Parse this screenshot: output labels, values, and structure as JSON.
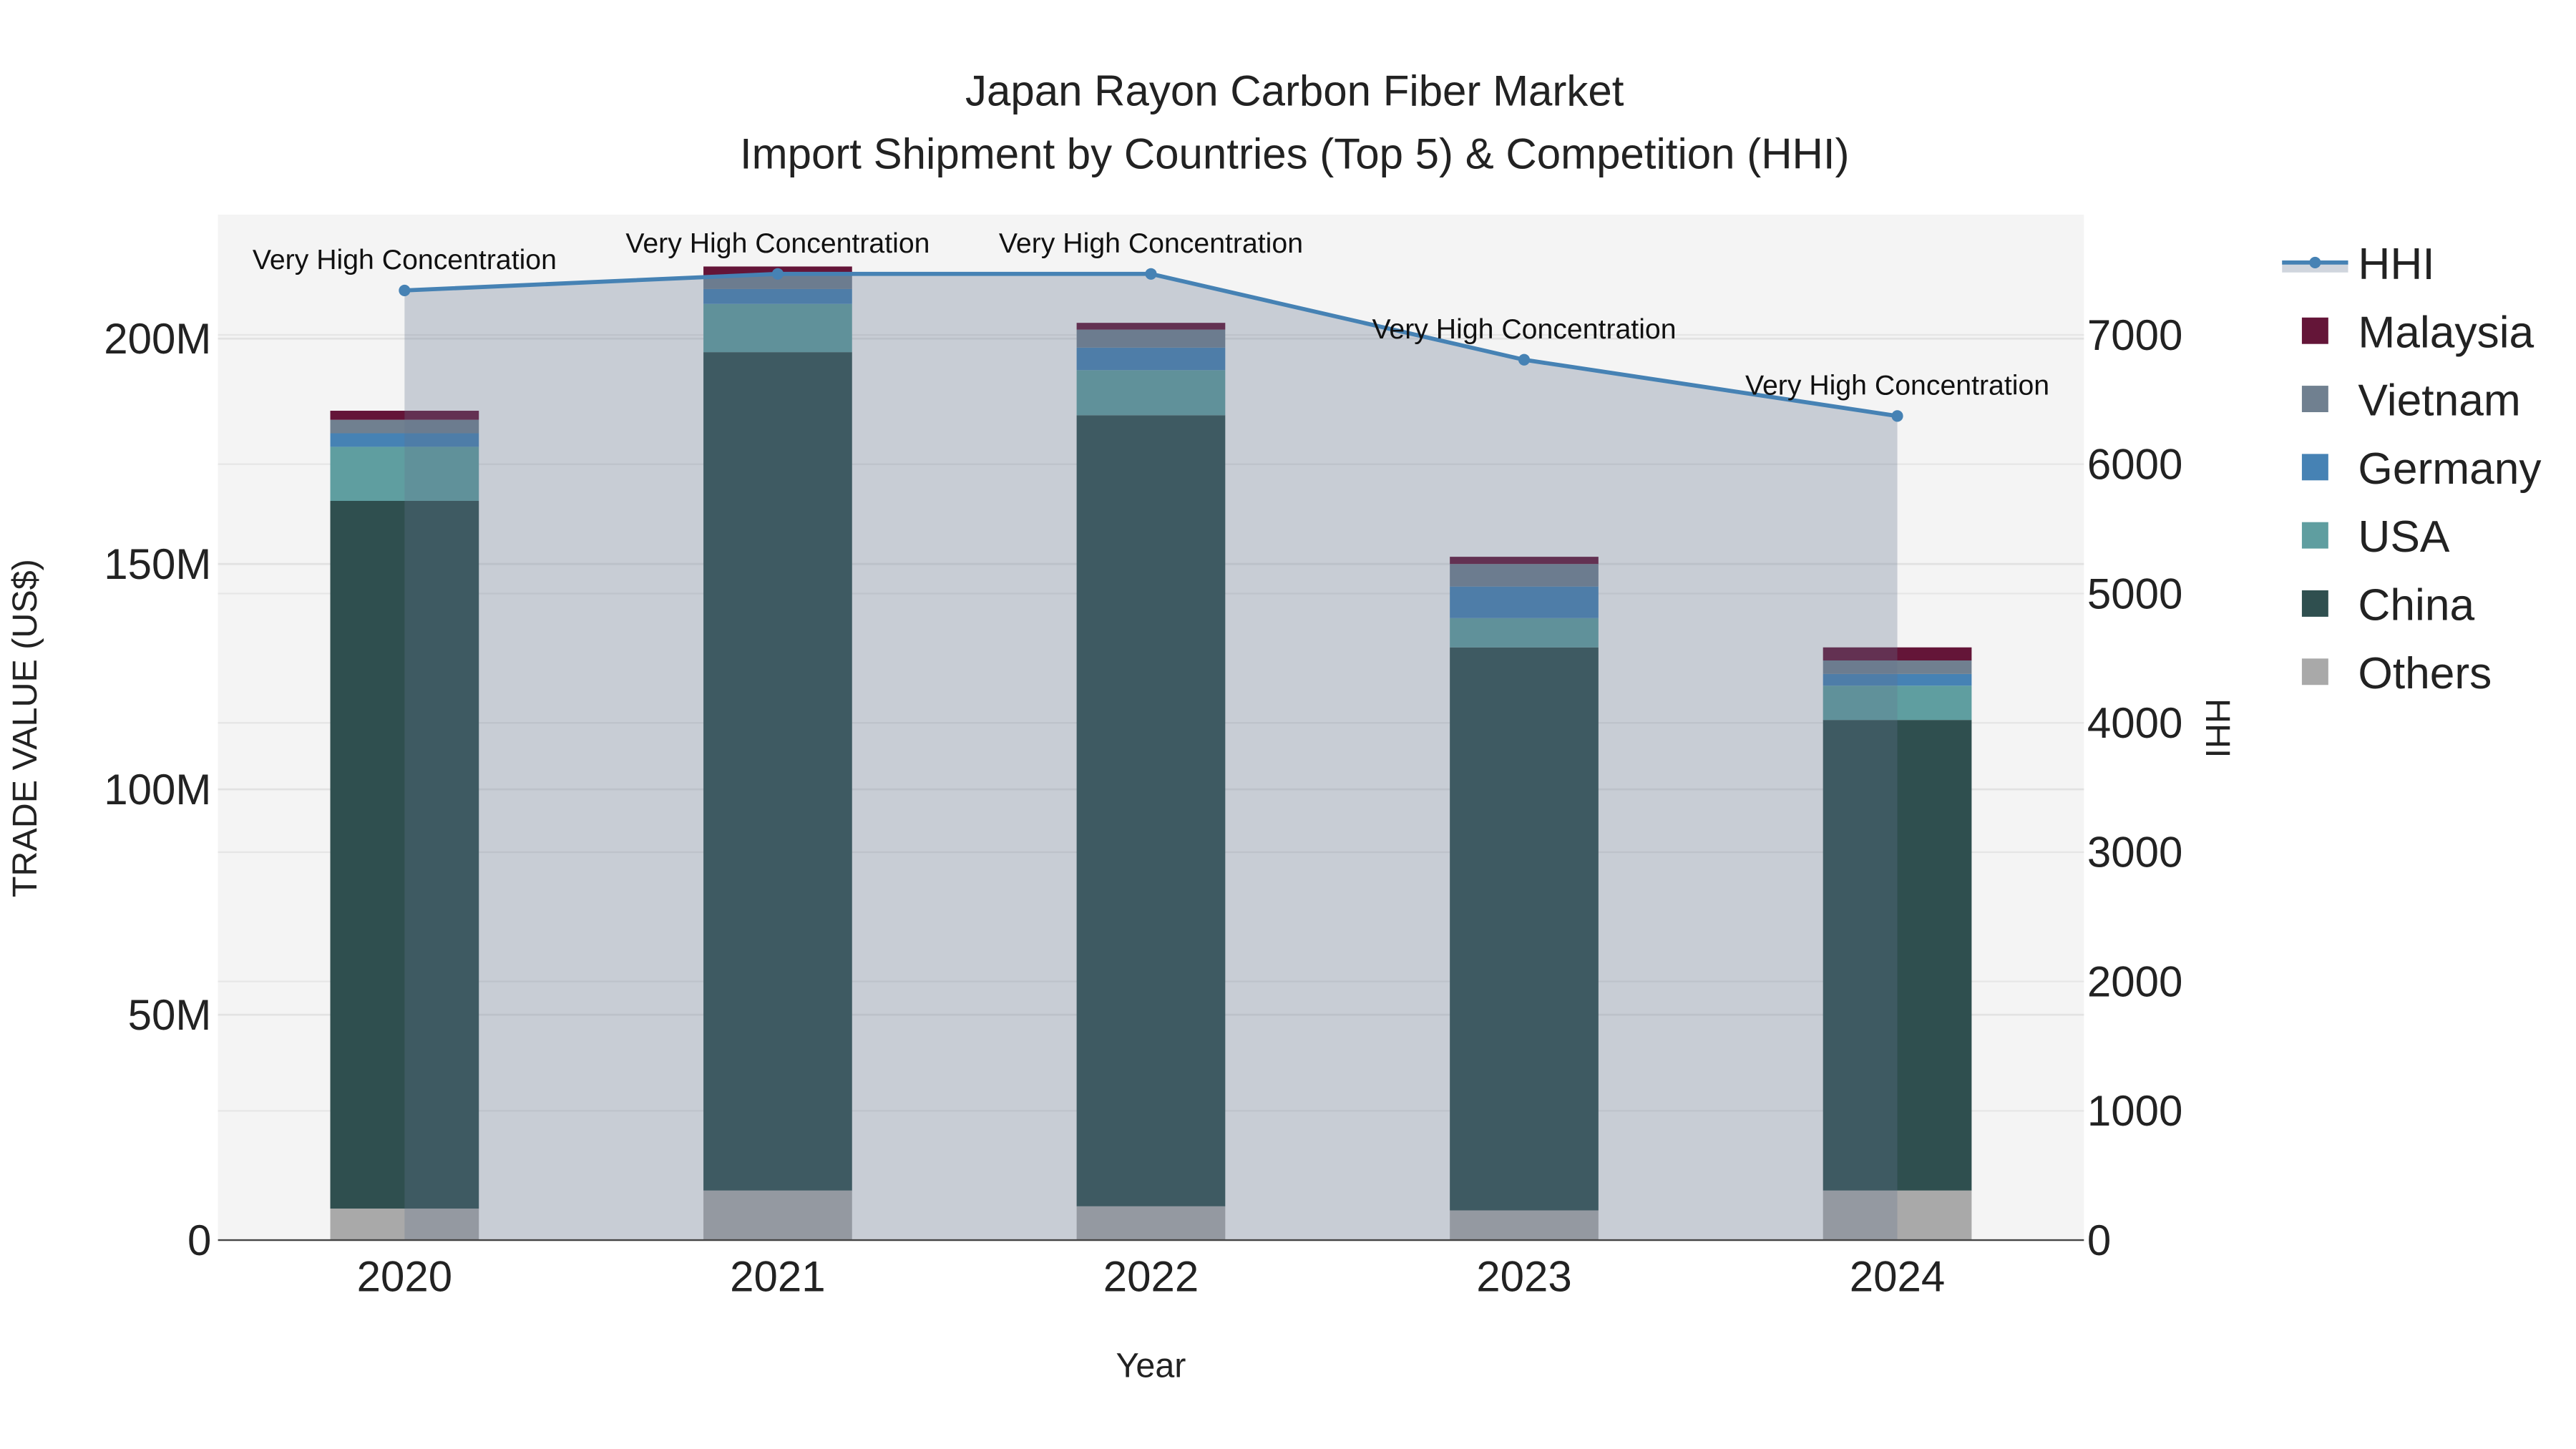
{
  "chart_data": {
    "type": "bar",
    "stacked": true,
    "title_line1": "Japan Rayon Carbon Fiber Market",
    "title_line2": "Import Shipment by Countries (Top 5) & Competition (HHI)",
    "xlabel": "Year",
    "ylabel": "TRADE VALUE (US$)",
    "y2label": "HHI",
    "categories": [
      "2020",
      "2021",
      "2022",
      "2023",
      "2024"
    ],
    "ylim": [
      0,
      227500000
    ],
    "y2lim": [
      0,
      7930
    ],
    "yticks": [
      {
        "v": 0,
        "label": "0"
      },
      {
        "v": 50000000,
        "label": "50M"
      },
      {
        "v": 100000000,
        "label": "100M"
      },
      {
        "v": 150000000,
        "label": "150M"
      },
      {
        "v": 200000000,
        "label": "200M"
      }
    ],
    "y2ticks": [
      {
        "v": 0,
        "label": "0"
      },
      {
        "v": 1000,
        "label": "1000"
      },
      {
        "v": 2000,
        "label": "2000"
      },
      {
        "v": 3000,
        "label": "3000"
      },
      {
        "v": 4000,
        "label": "4000"
      },
      {
        "v": 5000,
        "label": "5000"
      },
      {
        "v": 6000,
        "label": "6000"
      },
      {
        "v": 7000,
        "label": "7000"
      }
    ],
    "series": [
      {
        "name": "Others",
        "color": "#a9a9a9",
        "values": [
          7000000,
          11000000,
          7500000,
          6600000,
          11000000
        ]
      },
      {
        "name": "China",
        "color": "#2f4f4f",
        "values": [
          157000000,
          186000000,
          175500000,
          124900000,
          104400000
        ]
      },
      {
        "name": "USA",
        "color": "#5f9ea0",
        "values": [
          12000000,
          10700000,
          10000000,
          6500000,
          7600000
        ]
      },
      {
        "name": "Germany",
        "color": "#4682b4",
        "values": [
          3000000,
          3300000,
          5000000,
          7000000,
          2600000
        ]
      },
      {
        "name": "Vietnam",
        "color": "#708090",
        "values": [
          3000000,
          3000000,
          4000000,
          5000000,
          3000000
        ]
      },
      {
        "name": "Malaysia",
        "color": "#641538",
        "values": [
          2000000,
          2000000,
          1500000,
          1600000,
          2900000
        ]
      }
    ],
    "hhi": {
      "name": "HHI",
      "color": "#4682b4",
      "values": [
        7344,
        7472,
        7472,
        6808,
        6373
      ]
    },
    "annotations": [
      "Very High Concentration",
      "Very High Concentration",
      "Very High Concentration",
      "Very High Concentration",
      "Very High Concentration"
    ],
    "legend": [
      "HHI",
      "Malaysia",
      "Vietnam",
      "Germany",
      "USA",
      "China",
      "Others"
    ],
    "legend_placement": "right",
    "grid": true
  }
}
